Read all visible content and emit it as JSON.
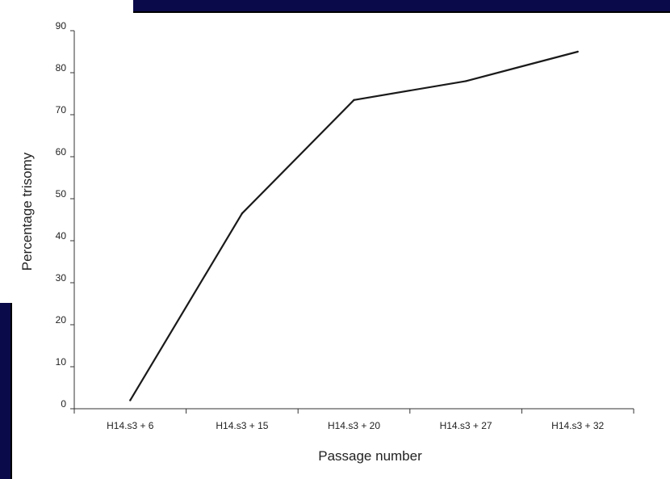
{
  "chart_data": {
    "type": "line",
    "title": "",
    "xlabel": "Passage number",
    "ylabel": "Percentage trisomy",
    "categories": [
      "H14.s3 + 6",
      "H14.s3 + 15",
      "H14.s3 + 20",
      "H14.s3 + 27",
      "H14.s3 + 32"
    ],
    "series": [
      {
        "values": [
          2,
          46.5,
          73.5,
          78,
          85
        ]
      }
    ],
    "ylim": [
      0,
      90
    ],
    "yticks": [
      0,
      10,
      20,
      30,
      40,
      50,
      60,
      70,
      80,
      90
    ],
    "grid": false,
    "legend": "none",
    "line_color": "#1a1a1a"
  }
}
